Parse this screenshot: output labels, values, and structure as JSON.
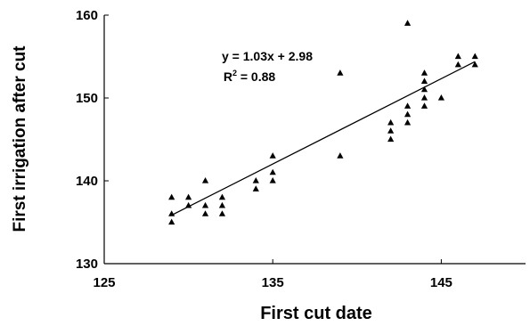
{
  "chart_data": {
    "type": "scatter",
    "xlabel": "First cut date",
    "ylabel": "First irrigation after cut",
    "xlim": [
      125,
      150
    ],
    "ylim": [
      130,
      160
    ],
    "xticks": [
      125,
      135,
      145
    ],
    "yticks": [
      130,
      140,
      150,
      160
    ],
    "grid": false,
    "legend": "none",
    "marker": "triangle",
    "marker_color": "#000000",
    "annotations": {
      "equation": "y = 1.03x + 2.98",
      "r2_label": "R",
      "r2_exponent": "2",
      "r2_value": " = 0.88"
    },
    "trendline": {
      "slope": 1.03,
      "intercept": 2.98,
      "x_range": [
        129,
        147
      ]
    },
    "series": [
      {
        "points": [
          [
            129,
            138
          ],
          [
            129,
            136
          ],
          [
            129,
            135
          ],
          [
            130,
            138
          ],
          [
            130,
            137
          ],
          [
            131,
            140
          ],
          [
            131,
            137
          ],
          [
            131,
            136
          ],
          [
            132,
            138
          ],
          [
            132,
            137
          ],
          [
            132,
            136
          ],
          [
            134,
            140
          ],
          [
            134,
            139
          ],
          [
            135,
            143
          ],
          [
            135,
            141
          ],
          [
            135,
            140
          ],
          [
            139,
            153
          ],
          [
            139,
            143
          ],
          [
            142,
            147
          ],
          [
            142,
            146
          ],
          [
            142,
            145
          ],
          [
            143,
            159
          ],
          [
            143,
            149
          ],
          [
            143,
            148
          ],
          [
            143,
            147
          ],
          [
            144,
            153
          ],
          [
            144,
            152
          ],
          [
            144,
            151
          ],
          [
            144,
            150
          ],
          [
            144,
            149
          ],
          [
            145,
            150
          ],
          [
            146,
            155
          ],
          [
            146,
            154
          ],
          [
            147,
            155
          ],
          [
            147,
            154
          ]
        ]
      }
    ]
  }
}
